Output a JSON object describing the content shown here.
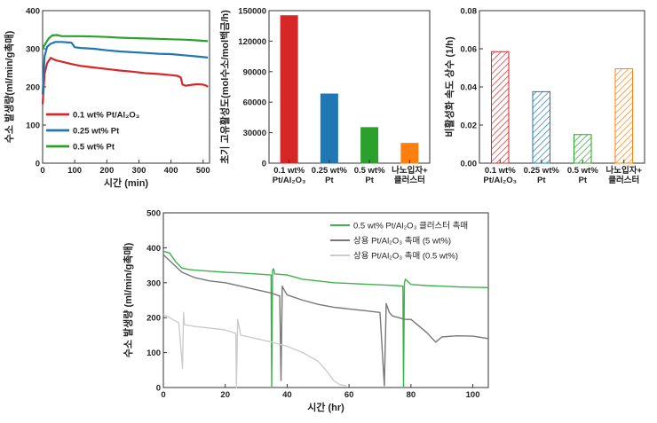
{
  "chart_data": [
    {
      "type": "line",
      "xlabel": "시간 (min)",
      "ylabel": "수소 발생량(ml/min/g촉매)",
      "xlim": [
        0,
        520
      ],
      "ylim": [
        0,
        400
      ],
      "xticks": [
        "0",
        "100",
        "200",
        "300",
        "400",
        "500"
      ],
      "yticks": [
        "0",
        "100",
        "200",
        "300",
        "400"
      ],
      "grid": false,
      "legend": "lower-left",
      "series": [
        {
          "name": "0.1 wt% Pt/Al₂O₃",
          "color": "#d62728",
          "x": [
            0,
            6,
            14,
            25,
            40,
            60,
            90,
            120,
            160,
            200,
            240,
            280,
            320,
            360,
            400,
            420,
            430,
            436,
            445,
            460,
            480,
            500,
            510,
            515
          ],
          "y": [
            155,
            235,
            262,
            276,
            270,
            266,
            260,
            255,
            251,
            247,
            243,
            240,
            236,
            234,
            231,
            229,
            225,
            206,
            203,
            205,
            207,
            206,
            203,
            200
          ]
        },
        {
          "name": "0.25 wt% Pt",
          "color": "#1f77b4",
          "x": [
            0,
            6,
            14,
            25,
            40,
            60,
            90,
            100,
            120,
            160,
            200,
            240,
            280,
            320,
            360,
            400,
            440,
            480,
            515
          ],
          "y": [
            180,
            280,
            305,
            313,
            318,
            318,
            316,
            304,
            302,
            300,
            296,
            293,
            291,
            289,
            287,
            286,
            283,
            280,
            277
          ]
        },
        {
          "name": "0.5 wt% Pt",
          "color": "#2ca02c",
          "x": [
            0,
            5,
            12,
            20,
            30,
            45,
            60,
            90,
            120,
            160,
            200,
            240,
            280,
            320,
            360,
            400,
            440,
            480,
            515
          ],
          "y": [
            300,
            308,
            318,
            328,
            335,
            336,
            333,
            333,
            333,
            332,
            331,
            329,
            328,
            327,
            326,
            325,
            324,
            322,
            320
          ]
        }
      ]
    },
    {
      "type": "bar",
      "ylabel": "초기 고유활성도(mol수소/mol백금/h)",
      "categories": [
        "0.1 wt%\nPt/Al₂O₃",
        "0.25 wt%\nPt",
        "0.5 wt%\nPt",
        "나노입자+\n클러스터"
      ],
      "values": [
        145000,
        68000,
        35000,
        19500
      ],
      "colors": [
        "#d62728",
        "#1f77b4",
        "#2ca02c",
        "#ff7f0e"
      ],
      "ylim": [
        0,
        150000
      ],
      "yticks": [
        "0",
        "30000",
        "60000",
        "90000",
        "120000",
        "150000"
      ],
      "hatched": false
    },
    {
      "type": "bar",
      "ylabel": "비활성화 속도 상수 (1/h)",
      "categories": [
        "0.1 wt%\nPt/Al₂O₃",
        "0.25 wt%\nPt",
        "0.5 wt%\nPt",
        "나노입자+\n클러스터"
      ],
      "values": [
        0.0585,
        0.0375,
        0.015,
        0.0495
      ],
      "colors": [
        "#d62728",
        "#1f77b4",
        "#2ca02c",
        "#ff7f0e"
      ],
      "ylim": [
        0,
        0.08
      ],
      "yticks": [
        "0.00",
        "0.02",
        "0.04",
        "0.06",
        "0.08"
      ],
      "hatched": true
    },
    {
      "type": "line",
      "xlabel": "시간 (hr)",
      "ylabel": "수소 발생량 (ml/min/g촉매)",
      "xlim": [
        0,
        105
      ],
      "ylim": [
        0,
        500
      ],
      "xticks": [
        "0",
        "20",
        "40",
        "60",
        "80",
        "100"
      ],
      "yticks": [
        "0",
        "100",
        "200",
        "300",
        "400",
        "500"
      ],
      "grid": false,
      "legend": "top-right",
      "series": [
        {
          "name": "0.5 wt%  Pt/Al₂O₃ 클러스터 촉매",
          "color": "#3cb44b",
          "x": [
            0,
            2,
            4,
            6,
            8,
            10,
            15,
            20,
            25,
            30,
            34.8,
            35,
            35.3,
            35.6,
            36,
            40,
            45,
            50,
            55,
            60,
            65,
            70,
            75,
            77.4,
            77.6,
            77.9,
            78.2,
            80,
            85,
            90,
            95,
            100,
            105
          ],
          "y": [
            390,
            385,
            360,
            342,
            338,
            336,
            333,
            330,
            328,
            325,
            322,
            0,
            335,
            340,
            325,
            322,
            310,
            305,
            300,
            298,
            296,
            294,
            292,
            290,
            0,
            300,
            310,
            295,
            292,
            290,
            288,
            287,
            286
          ]
        },
        {
          "name": "상용 Pt/Al₂O₃ 촉매 (5 wt%)",
          "color": "#777777",
          "x": [
            0,
            3,
            6,
            10,
            15,
            20,
            25,
            30,
            35,
            37.6,
            38,
            38.4,
            39,
            40,
            45,
            50,
            55,
            60,
            65,
            70,
            71.4,
            72,
            72.4,
            73,
            74,
            78,
            80,
            85,
            88,
            90,
            95,
            100,
            105
          ],
          "y": [
            380,
            355,
            330,
            315,
            305,
            300,
            290,
            280,
            270,
            262,
            20,
            290,
            280,
            265,
            250,
            238,
            230,
            225,
            220,
            215,
            5,
            240,
            230,
            215,
            205,
            195,
            195,
            158,
            130,
            145,
            148,
            147,
            140
          ]
        },
        {
          "name": "상용 Pt/Al₂O₃ 촉매 (0.5 wt%)",
          "color": "#cccccc",
          "x": [
            0,
            2,
            5,
            6.2,
            6.5,
            6.8,
            10,
            15,
            20,
            23.4,
            23.6,
            24,
            25,
            30,
            35,
            40,
            45,
            50,
            53,
            55,
            57,
            59
          ],
          "y": [
            210,
            200,
            185,
            55,
            215,
            180,
            175,
            170,
            165,
            155,
            0,
            195,
            150,
            140,
            130,
            118,
            100,
            75,
            45,
            20,
            8,
            5
          ]
        }
      ]
    }
  ]
}
